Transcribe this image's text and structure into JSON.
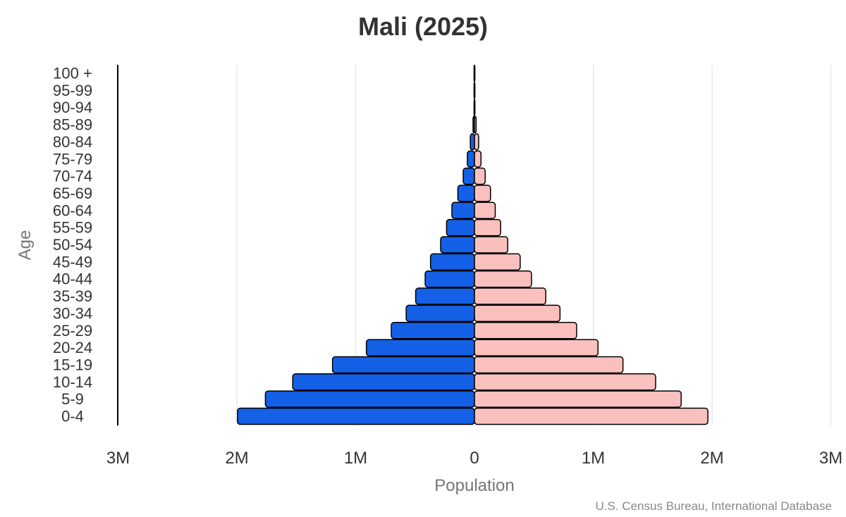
{
  "source_text": "U.S. Census Bureau, International Database",
  "chart_data": {
    "type": "bar",
    "orientation": "horizontal-population-pyramid",
    "title": "Mali (2025)",
    "xlabel": "Population",
    "ylabel": "Age",
    "xlim": [
      -3000000,
      3000000
    ],
    "x_ticks": [
      {
        "value": -3000000,
        "label": "3M"
      },
      {
        "value": -2000000,
        "label": "2M"
      },
      {
        "value": -1000000,
        "label": "1M"
      },
      {
        "value": 0,
        "label": "0"
      },
      {
        "value": 1000000,
        "label": "1M"
      },
      {
        "value": 2000000,
        "label": "2M"
      },
      {
        "value": 3000000,
        "label": "3M"
      }
    ],
    "grid": true,
    "categories": [
      "0-4",
      "5-9",
      "10-14",
      "15-19",
      "20-24",
      "25-29",
      "30-34",
      "35-39",
      "40-44",
      "45-49",
      "50-54",
      "55-59",
      "60-64",
      "65-69",
      "70-74",
      "75-79",
      "80-84",
      "85-89",
      "90-94",
      "95-99",
      "100 +"
    ],
    "series": [
      {
        "side": "left",
        "color": "#1460e6",
        "values": [
          1995000,
          1760000,
          1530000,
          1195000,
          910000,
          700000,
          575000,
          495000,
          415000,
          370000,
          285000,
          235000,
          190000,
          140000,
          95000,
          60000,
          35000,
          12000,
          3000,
          800,
          100
        ]
      },
      {
        "side": "right",
        "color": "#fac0be",
        "values": [
          1965000,
          1740000,
          1525000,
          1250000,
          1040000,
          860000,
          720000,
          600000,
          480000,
          385000,
          280000,
          220000,
          175000,
          135000,
          90000,
          55000,
          35000,
          14000,
          4000,
          1000,
          100
        ]
      }
    ]
  }
}
